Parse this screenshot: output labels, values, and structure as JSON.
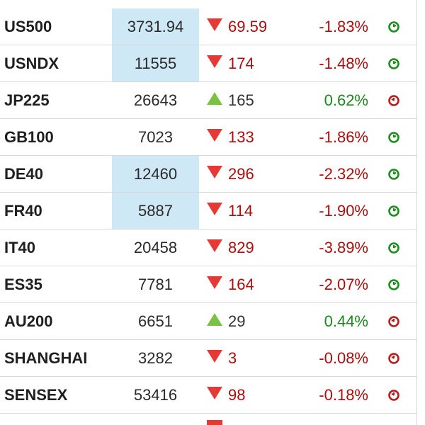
{
  "colors": {
    "down": "#e53935",
    "up": "#7cc242",
    "highlight": "#cfe8f6",
    "text_down": "#b10c0c",
    "text_up": "#1a8a1a"
  },
  "rows": [
    {
      "name": "US500",
      "price": "3731.94",
      "dir": "down",
      "change": "69.59",
      "pct": "-1.83%",
      "status": "clock-open-icon",
      "highlight": true
    },
    {
      "name": "USNDX",
      "price": "11555",
      "dir": "down",
      "change": "174",
      "pct": "-1.48%",
      "status": "clock-open-icon",
      "highlight": true
    },
    {
      "name": "JP225",
      "price": "26643",
      "dir": "up",
      "change": "165",
      "pct": "0.62%",
      "status": "clock-closed-icon",
      "highlight": false
    },
    {
      "name": "GB100",
      "price": "7023",
      "dir": "down",
      "change": "133",
      "pct": "-1.86%",
      "status": "clock-open-icon",
      "highlight": false
    },
    {
      "name": "DE40",
      "price": "12460",
      "dir": "down",
      "change": "296",
      "pct": "-2.32%",
      "status": "clock-open-icon",
      "highlight": true
    },
    {
      "name": "FR40",
      "price": "5887",
      "dir": "down",
      "change": "114",
      "pct": "-1.90%",
      "status": "clock-open-icon",
      "highlight": true
    },
    {
      "name": "IT40",
      "price": "20458",
      "dir": "down",
      "change": "829",
      "pct": "-3.89%",
      "status": "clock-open-icon",
      "highlight": false
    },
    {
      "name": "ES35",
      "price": "7781",
      "dir": "down",
      "change": "164",
      "pct": "-2.07%",
      "status": "clock-open-icon",
      "highlight": false
    },
    {
      "name": "AU200",
      "price": "6651",
      "dir": "up",
      "change": "29",
      "pct": "0.44%",
      "status": "clock-closed-icon",
      "highlight": false
    },
    {
      "name": "SHANGHAI",
      "price": "3282",
      "dir": "down",
      "change": "3",
      "pct": "-0.08%",
      "status": "clock-closed-icon",
      "highlight": false
    },
    {
      "name": "SENSEX",
      "price": "53416",
      "dir": "down",
      "change": "98",
      "pct": "-0.18%",
      "status": "clock-closed-icon",
      "highlight": false
    }
  ]
}
